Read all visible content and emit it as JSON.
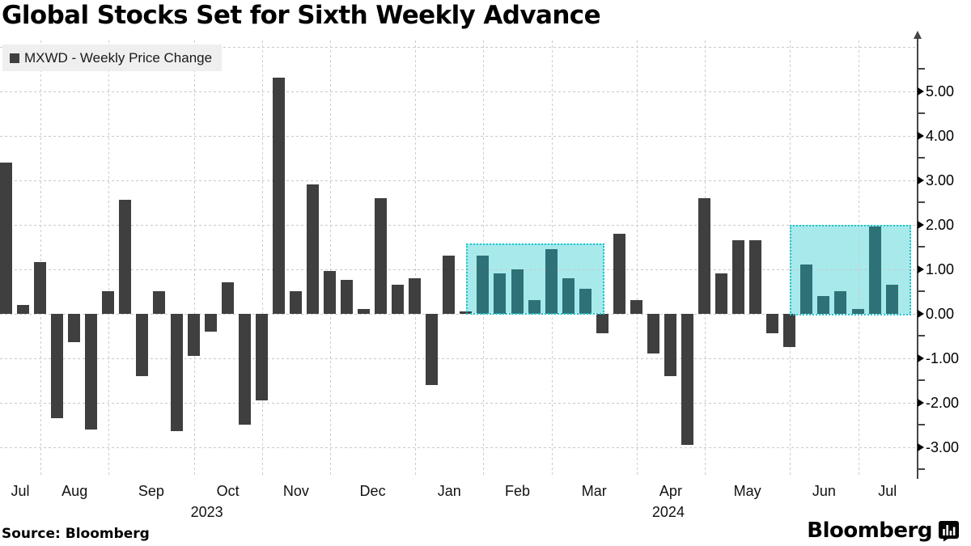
{
  "title": "Global Stocks Set for Sixth Weekly Advance",
  "legend": {
    "label": "MXWD - Weekly Price Change"
  },
  "footer": {
    "source": "Source: Bloomberg",
    "brand": "Bloomberg"
  },
  "colors": {
    "bar": "#3f3f3f",
    "highlight_bar": "#2e7176",
    "highlight_fill": "#a8e9ec",
    "highlight_border": "#17c6cc",
    "grid": "#c9c9c9",
    "axis": "#454545",
    "legend_bg": "#efefef"
  },
  "chart_data": {
    "type": "bar",
    "title": "Global Stocks Set for Sixth Weekly Advance",
    "series": [
      {
        "name": "MXWD - Weekly Price Change",
        "values": [
          3.4,
          0.2,
          1.15,
          -2.35,
          -0.65,
          -2.6,
          0.5,
          2.55,
          -1.4,
          0.5,
          -2.65,
          -0.95,
          -0.4,
          0.7,
          -2.5,
          -1.95,
          5.3,
          0.5,
          2.9,
          0.95,
          0.75,
          0.1,
          2.6,
          0.65,
          0.8,
          -1.6,
          1.3,
          0.05,
          1.3,
          0.9,
          1.0,
          0.3,
          1.45,
          0.8,
          0.55,
          -0.45,
          1.8,
          0.3,
          -0.9,
          -1.4,
          -2.95,
          2.6,
          0.9,
          1.65,
          1.65,
          -0.45,
          -0.75,
          1.1,
          0.4,
          0.5,
          0.1,
          1.95,
          0.65
        ]
      }
    ],
    "x_axis": {
      "unit": "week",
      "month_groups": [
        {
          "label": "Jul",
          "weeks": 2
        },
        {
          "label": "Aug",
          "weeks": 4
        },
        {
          "label": "Sep",
          "weeks": 5
        },
        {
          "label": "Oct",
          "weeks": 4,
          "year": "2023"
        },
        {
          "label": "Nov",
          "weeks": 4
        },
        {
          "label": "Dec",
          "weeks": 5
        },
        {
          "label": "Jan",
          "weeks": 4
        },
        {
          "label": "Feb",
          "weeks": 4
        },
        {
          "label": "Mar",
          "weeks": 5
        },
        {
          "label": "Apr",
          "weeks": 4,
          "year": "2024"
        },
        {
          "label": "May",
          "weeks": 5
        },
        {
          "label": "Jun",
          "weeks": 4
        },
        {
          "label": "Jul",
          "weeks": 3
        }
      ]
    },
    "y_axis": {
      "tick_labels": [
        "5.00",
        "4.00",
        "3.00",
        "2.00",
        "1.00",
        "0.00",
        "-1.00",
        "-2.00",
        "-3.00"
      ],
      "major_tick_values": [
        5,
        4,
        3,
        2,
        1,
        0,
        -1,
        -2,
        -3
      ],
      "minor_tick_values": [
        5.5,
        4.5,
        3.5,
        2.5,
        1.5,
        0.5,
        -0.5,
        -1.5,
        -2.5,
        -3.5
      ],
      "grid_values": [
        6,
        5,
        4,
        3,
        2,
        1,
        0,
        -1,
        -2,
        -3
      ]
    },
    "grid": true,
    "legend_position": "top-left",
    "highlights": [
      {
        "from_week": 28,
        "to_week": 35,
        "top_value": 1.58
      },
      {
        "from_week": 47,
        "to_week": 53,
        "top_value": 2.0
      }
    ]
  }
}
